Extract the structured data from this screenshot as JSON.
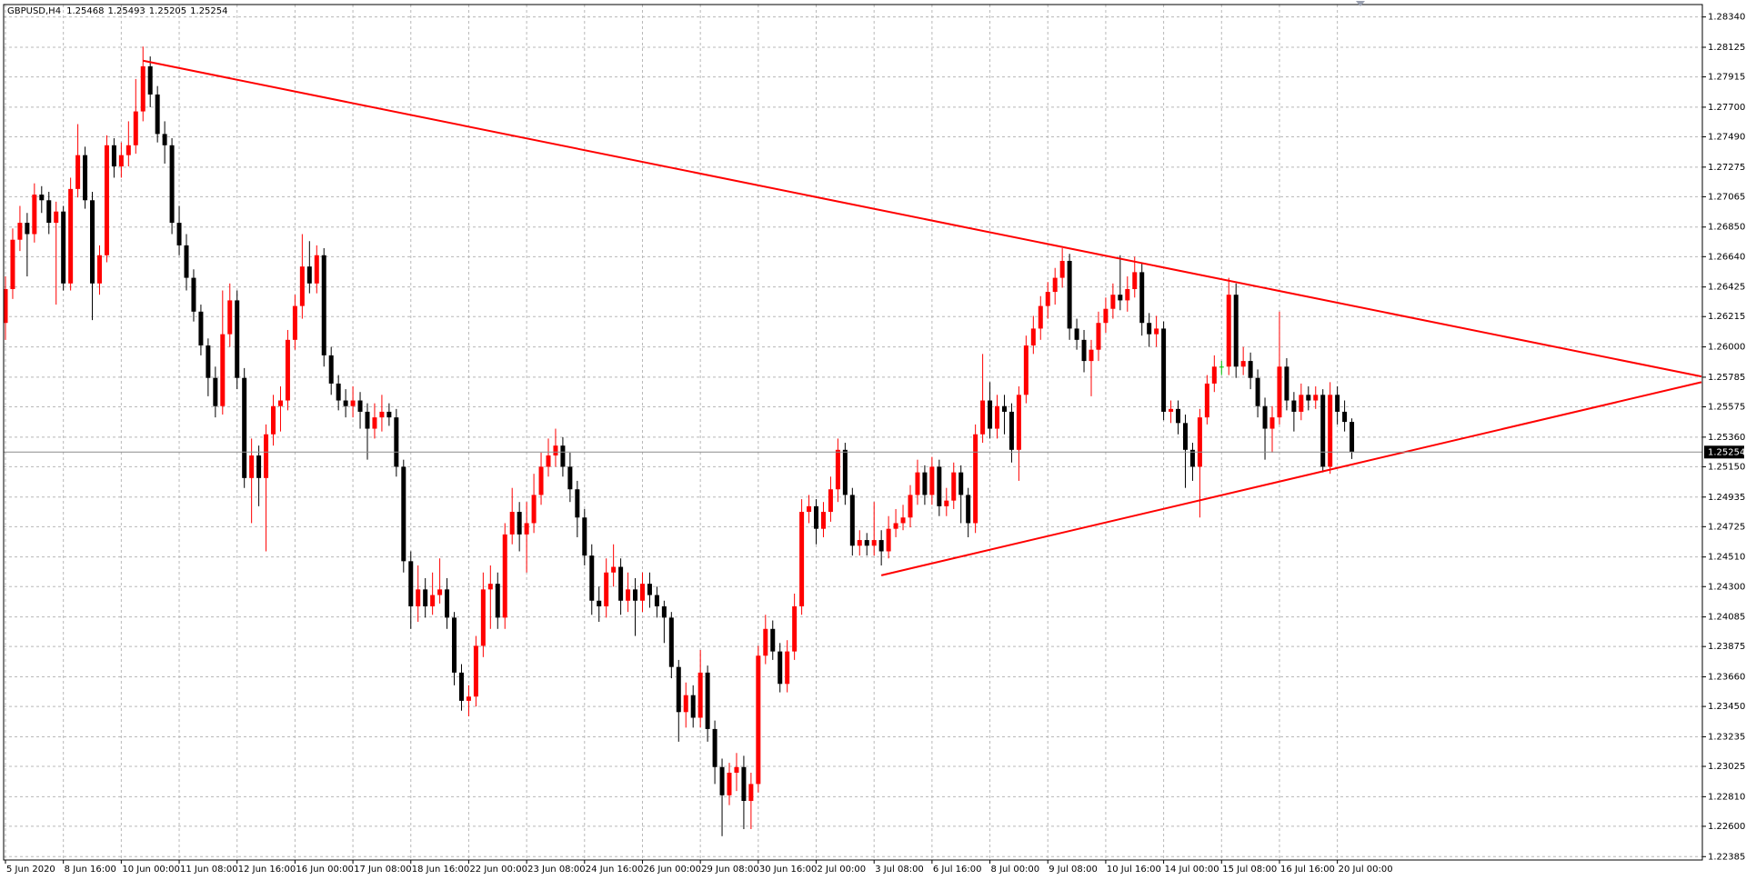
{
  "chart_data": {
    "type": "candlestick",
    "title": "GBPUSD,H4",
    "up_color": "#ff0000",
    "down_color": "#000000",
    "doji_color": "#00c000",
    "grid": true,
    "categories": [
      "5 Jun 2020",
      null,
      null,
      null,
      null,
      null,
      null,
      null,
      "8 Jun 16:00",
      null,
      null,
      null,
      null,
      null,
      null,
      null,
      "10 Jun 00:00",
      null,
      null,
      null,
      null,
      null,
      null,
      null,
      "11 Jun 08:00",
      null,
      null,
      null,
      null,
      null,
      null,
      null,
      "12 Jun 16:00",
      null,
      null,
      null,
      null,
      null,
      null,
      null,
      "16 Jun 00:00",
      null,
      null,
      null,
      null,
      null,
      null,
      null,
      "17 Jun 08:00",
      null,
      null,
      null,
      null,
      null,
      null,
      null,
      "18 Jun 16:00",
      null,
      null,
      null,
      null,
      null,
      null,
      null,
      "22 Jun 00:00",
      null,
      null,
      null,
      null,
      null,
      null,
      null,
      "23 Jun 08:00",
      null,
      null,
      null,
      null,
      null,
      null,
      null,
      "24 Jun 16:00",
      null,
      null,
      null,
      null,
      null,
      null,
      null,
      "26 Jun 00:00",
      null,
      null,
      null,
      null,
      null,
      null,
      null,
      "29 Jun 08:00",
      null,
      null,
      null,
      null,
      null,
      null,
      null,
      "30 Jun 16:00",
      null,
      null,
      null,
      null,
      null,
      null,
      null,
      "2 Jul 00:00",
      null,
      null,
      null,
      null,
      null,
      null,
      null,
      "3 Jul 08:00",
      null,
      null,
      null,
      null,
      null,
      null,
      null,
      "6 Jul 16:00",
      null,
      null,
      null,
      null,
      null,
      null,
      null,
      "8 Jul 00:00",
      null,
      null,
      null,
      null,
      null,
      null,
      null,
      "9 Jul 08:00",
      null,
      null,
      null,
      null,
      null,
      null,
      null,
      "10 Jul 16:00",
      null,
      null,
      null,
      null,
      null,
      null,
      null,
      "14 Jul 00:00",
      null,
      null,
      null,
      null,
      null,
      null,
      null,
      "15 Jul 08:00",
      null,
      null,
      null,
      null,
      null,
      null,
      null,
      "16 Jul 16:00",
      null,
      null,
      null,
      null,
      null,
      null,
      null,
      "20 Jul 00:00",
      null,
      null
    ],
    "open": [
      1.2617,
      1.2641,
      1.2676,
      1.2688,
      1.268,
      1.2708,
      1.2704,
      1.2688,
      1.2696,
      1.2645,
      1.2712,
      1.2736,
      1.2704,
      1.2645,
      1.2665,
      1.2743,
      1.2728,
      1.2736,
      1.2743,
      1.2767,
      1.2799,
      1.2779,
      1.2751,
      1.2743,
      1.2688,
      1.2672,
      1.2649,
      1.2625,
      1.2601,
      1.2578,
      1.2558,
      1.2609,
      1.2633,
      1.2578,
      1.2507,
      1.2523,
      1.2507,
      1.2538,
      1.2558,
      1.2562,
      1.2605,
      1.2629,
      1.2657,
      1.2645,
      1.2665,
      1.2594,
      1.2574,
      1.2562,
      1.2558,
      1.2562,
      1.2554,
      1.2542,
      1.255,
      1.2554,
      1.255,
      1.2515,
      1.2448,
      1.2416,
      1.2428,
      1.2416,
      1.2424,
      1.2428,
      1.2408,
      1.2369,
      1.2349,
      1.2352,
      1.2388,
      1.2428,
      1.2432,
      1.2408,
      1.2467,
      1.2483,
      1.2467,
      1.2475,
      1.2495,
      1.2515,
      1.2523,
      1.253,
      1.2515,
      1.2499,
      1.2479,
      1.2452,
      1.242,
      1.2416,
      1.244,
      1.2444,
      1.242,
      1.2428,
      1.242,
      1.2432,
      1.2424,
      1.2416,
      1.2408,
      1.2373,
      1.2341,
      1.2353,
      1.2337,
      1.2369,
      1.2329,
      1.2302,
      1.2282,
      1.2298,
      1.2302,
      1.2278,
      1.229,
      1.2381,
      1.24,
      1.2384,
      1.2361,
      1.2384,
      1.2416,
      1.2483,
      1.2487,
      1.2471,
      1.2483,
      1.2499,
      1.2527,
      1.2495,
      1.2459,
      1.2463,
      1.2459,
      1.2463,
      1.2455,
      1.2471,
      1.2475,
      1.2479,
      1.2495,
      1.2511,
      1.2495,
      1.2515,
      1.2487,
      1.2491,
      1.2511,
      1.2495,
      1.2475,
      1.2538,
      1.2562,
      1.2542,
      1.2558,
      1.2554,
      1.2527,
      1.2566,
      1.2601,
      1.2613,
      1.2629,
      1.2639,
      1.2649,
      1.2661,
      1.2613,
      1.2605,
      1.259,
      1.2598,
      1.2617,
      1.2627,
      1.2637,
      1.2633,
      1.2641,
      1.2653,
      1.2617,
      1.2609,
      1.2613,
      1.2554,
      1.2556,
      1.2546,
      1.2527,
      1.2515,
      1.255,
      1.2574,
      1.2586,
      1.2586,
      1.2637,
      1.2586,
      1.259,
      1.2578,
      1.2558,
      1.2542,
      1.255,
      1.2586,
      1.2562,
      1.2554,
      1.2566,
      1.2562,
      1.2566,
      1.2515,
      1.2566,
      1.2554,
      1.25468
    ],
    "high": [
      1.265,
      1.2684,
      1.27,
      1.2695,
      1.2716,
      1.2714,
      1.271,
      1.2703,
      1.27,
      1.272,
      1.2758,
      1.2742,
      1.271,
      1.2672,
      1.275,
      1.2748,
      1.2745,
      1.276,
      1.279,
      1.2813,
      1.2806,
      1.2785,
      1.276,
      1.2748,
      1.27,
      1.268,
      1.2655,
      1.263,
      1.2606,
      1.2586,
      1.264,
      1.2645,
      1.264,
      1.2585,
      1.2535,
      1.253,
      1.2545,
      1.2566,
      1.2572,
      1.2612,
      1.2637,
      1.268,
      1.2675,
      1.2672,
      1.267,
      1.26,
      1.258,
      1.257,
      1.2572,
      1.2568,
      1.256,
      1.256,
      1.2566,
      1.256,
      1.2556,
      1.252,
      1.2455,
      1.2445,
      1.2436,
      1.244,
      1.245,
      1.2436,
      1.2412,
      1.2375,
      1.236,
      1.2395,
      1.244,
      1.2445,
      1.244,
      1.2475,
      1.25,
      1.249,
      1.249,
      1.251,
      1.2525,
      1.2535,
      1.2542,
      1.2536,
      1.2525,
      1.2505,
      1.2485,
      1.246,
      1.243,
      1.245,
      1.246,
      1.245,
      1.244,
      1.2436,
      1.244,
      1.244,
      1.243,
      1.242,
      1.2412,
      1.2378,
      1.2362,
      1.236,
      1.2385,
      1.2374,
      1.2335,
      1.2308,
      1.2305,
      1.2312,
      1.231,
      1.2298,
      1.2388,
      1.241,
      1.2406,
      1.239,
      1.2392,
      1.2425,
      1.2492,
      1.2495,
      1.2492,
      1.249,
      1.2508,
      1.2535,
      1.2532,
      1.25,
      1.247,
      1.2468,
      1.249,
      1.247,
      1.248,
      1.2485,
      1.2488,
      1.2502,
      1.252,
      1.2516,
      1.2522,
      1.252,
      1.25,
      1.2518,
      1.2516,
      1.25,
      1.2545,
      1.2595,
      1.2575,
      1.2566,
      1.2566,
      1.256,
      1.2572,
      1.2608,
      1.2622,
      1.2636,
      1.2646,
      1.2656,
      1.267,
      1.2666,
      1.262,
      1.2612,
      1.2605,
      1.2625,
      1.2635,
      1.2645,
      1.2665,
      1.265,
      1.2664,
      1.266,
      1.2624,
      1.2622,
      1.2618,
      1.2562,
      1.2562,
      1.2552,
      1.2532,
      1.2556,
      1.258,
      1.2594,
      1.259,
      1.2649,
      1.2645,
      1.26,
      1.2596,
      1.2584,
      1.2564,
      1.2558,
      1.2625,
      1.2592,
      1.2568,
      1.2574,
      1.2572,
      1.2572,
      1.257,
      1.2575,
      1.2572,
      1.2562,
      1.25493
    ],
    "low": [
      1.2605,
      1.2634,
      1.2668,
      1.265,
      1.2674,
      1.2695,
      1.268,
      1.263,
      1.264,
      1.264,
      1.2706,
      1.2698,
      1.2619,
      1.2637,
      1.266,
      1.272,
      1.272,
      1.2728,
      1.2737,
      1.276,
      1.277,
      1.2745,
      1.273,
      1.268,
      1.2665,
      1.264,
      1.2618,
      1.2594,
      1.2565,
      1.255,
      1.2552,
      1.26,
      1.257,
      1.25,
      1.2475,
      1.2487,
      1.2455,
      1.253,
      1.254,
      1.2555,
      1.2598,
      1.262,
      1.2638,
      1.2638,
      1.2586,
      1.2566,
      1.2555,
      1.255,
      1.255,
      1.2542,
      1.252,
      1.2535,
      1.254,
      1.2544,
      1.2508,
      1.244,
      1.24,
      1.2405,
      1.2408,
      1.241,
      1.2418,
      1.24,
      1.236,
      1.2342,
      1.2338,
      1.2345,
      1.238,
      1.24,
      1.24,
      1.24,
      1.246,
      1.2455,
      1.244,
      1.2468,
      1.2488,
      1.2508,
      1.2515,
      1.2508,
      1.249,
      1.2465,
      1.2445,
      1.241,
      1.2405,
      1.2408,
      1.243,
      1.241,
      1.2412,
      1.2395,
      1.2412,
      1.2415,
      1.2408,
      1.239,
      1.2365,
      1.232,
      1.233,
      1.233,
      1.233,
      1.232,
      1.229,
      1.2253,
      1.2275,
      1.2285,
      1.2258,
      1.2258,
      1.2284,
      1.2375,
      1.2378,
      1.2355,
      1.2355,
      1.2378,
      1.241,
      1.2475,
      1.246,
      1.2465,
      1.2476,
      1.249,
      1.2488,
      1.2452,
      1.2452,
      1.2452,
      1.2452,
      1.2445,
      1.245,
      1.2465,
      1.247,
      1.2472,
      1.2488,
      1.2488,
      1.2488,
      1.248,
      1.248,
      1.2485,
      1.2475,
      1.2465,
      1.2468,
      1.2532,
      1.2535,
      1.2535,
      1.2538,
      1.2518,
      1.2505,
      1.256,
      1.2595,
      1.2605,
      1.262,
      1.263,
      1.2642,
      1.2605,
      1.2598,
      1.2582,
      1.2565,
      1.259,
      1.261,
      1.262,
      1.2626,
      1.2625,
      1.2635,
      1.2608,
      1.26,
      1.26,
      1.2548,
      1.2546,
      1.2538,
      1.25,
      1.2505,
      1.2479,
      1.2545,
      1.2568,
      1.258,
      1.258,
      1.2578,
      1.258,
      1.257,
      1.255,
      1.252,
      1.2525,
      1.2545,
      1.2555,
      1.254,
      1.2548,
      1.2555,
      1.2556,
      1.2511,
      1.251,
      1.2545,
      1.254,
      1.25205
    ],
    "close": [
      1.2641,
      1.2676,
      1.2688,
      1.268,
      1.2708,
      1.2704,
      1.2688,
      1.2696,
      1.2645,
      1.2712,
      1.2736,
      1.2704,
      1.2645,
      1.2665,
      1.2743,
      1.2728,
      1.2736,
      1.2743,
      1.2767,
      1.2799,
      1.2779,
      1.2751,
      1.2743,
      1.2688,
      1.2672,
      1.2649,
      1.2625,
      1.2601,
      1.2578,
      1.2558,
      1.2609,
      1.2633,
      1.2578,
      1.2507,
      1.2523,
      1.2507,
      1.2538,
      1.2558,
      1.2562,
      1.2605,
      1.2629,
      1.2657,
      1.2645,
      1.2665,
      1.2594,
      1.2574,
      1.2562,
      1.2558,
      1.2562,
      1.2554,
      1.2542,
      1.255,
      1.2554,
      1.255,
      1.2515,
      1.2448,
      1.2416,
      1.2428,
      1.2416,
      1.2424,
      1.2428,
      1.2408,
      1.2369,
      1.2349,
      1.2352,
      1.2388,
      1.2428,
      1.2432,
      1.2408,
      1.2467,
      1.2483,
      1.2467,
      1.2475,
      1.2495,
      1.2515,
      1.2523,
      1.253,
      1.2515,
      1.2499,
      1.2479,
      1.2452,
      1.242,
      1.2416,
      1.244,
      1.2444,
      1.242,
      1.2428,
      1.242,
      1.2432,
      1.2424,
      1.2416,
      1.2408,
      1.2373,
      1.2341,
      1.2353,
      1.2337,
      1.2369,
      1.2329,
      1.2302,
      1.2282,
      1.2298,
      1.2302,
      1.2278,
      1.229,
      1.2381,
      1.24,
      1.2384,
      1.2361,
      1.2384,
      1.2416,
      1.2483,
      1.2487,
      1.2471,
      1.2483,
      1.2499,
      1.2527,
      1.2495,
      1.2459,
      1.2463,
      1.2459,
      1.2463,
      1.2455,
      1.2471,
      1.2475,
      1.2479,
      1.2495,
      1.2511,
      1.2495,
      1.2515,
      1.2487,
      1.2491,
      1.2511,
      1.2495,
      1.2475,
      1.2538,
      1.2562,
      1.2542,
      1.2558,
      1.2554,
      1.2527,
      1.2566,
      1.2601,
      1.2613,
      1.2629,
      1.2639,
      1.2649,
      1.2661,
      1.2613,
      1.2605,
      1.259,
      1.2598,
      1.2617,
      1.2627,
      1.2637,
      1.2633,
      1.2641,
      1.2653,
      1.2617,
      1.2609,
      1.2613,
      1.2554,
      1.2556,
      1.2546,
      1.2527,
      1.2515,
      1.255,
      1.2574,
      1.2586,
      1.2586,
      1.2637,
      1.2586,
      1.259,
      1.2578,
      1.2558,
      1.2542,
      1.255,
      1.2586,
      1.2562,
      1.2554,
      1.2566,
      1.2562,
      1.2566,
      1.2515,
      1.2566,
      1.2554,
      1.25468,
      1.25254
    ],
    "ylim": [
      1.22361,
      1.28428
    ],
    "yticks": [
      {
        "value": 1.2834,
        "label": "1.28340"
      },
      {
        "value": 1.28125,
        "label": "1.28125"
      },
      {
        "value": 1.27915,
        "label": "1.27915"
      },
      {
        "value": 1.277,
        "label": "1.27700"
      },
      {
        "value": 1.2749,
        "label": "1.27490"
      },
      {
        "value": 1.27275,
        "label": "1.27275"
      },
      {
        "value": 1.27065,
        "label": "1.27065"
      },
      {
        "value": 1.2685,
        "label": "1.26850"
      },
      {
        "value": 1.2664,
        "label": "1.26640"
      },
      {
        "value": 1.26425,
        "label": "1.26425"
      },
      {
        "value": 1.26215,
        "label": "1.26215"
      },
      {
        "value": 1.26,
        "label": "1.26000"
      },
      {
        "value": 1.25785,
        "label": "1.25785"
      },
      {
        "value": 1.25575,
        "label": "1.25575"
      },
      {
        "value": 1.2536,
        "label": "1.25360"
      },
      {
        "value": 1.2515,
        "label": "1.25150"
      },
      {
        "value": 1.24935,
        "label": "1.24935"
      },
      {
        "value": 1.24725,
        "label": "1.24725"
      },
      {
        "value": 1.2451,
        "label": "1.24510"
      },
      {
        "value": 1.243,
        "label": "1.24300"
      },
      {
        "value": 1.24085,
        "label": "1.24085"
      },
      {
        "value": 1.23875,
        "label": "1.23875"
      },
      {
        "value": 1.2366,
        "label": "1.23660"
      },
      {
        "value": 1.2345,
        "label": "1.23450"
      },
      {
        "value": 1.23235,
        "label": "1.23235"
      },
      {
        "value": 1.23025,
        "label": "1.23025"
      },
      {
        "value": 1.2281,
        "label": "1.22810"
      },
      {
        "value": 1.226,
        "label": "1.22600"
      },
      {
        "value": 1.22385,
        "label": "1.22385"
      }
    ],
    "trendlines": [
      {
        "color": "#ff0000",
        "x": [
          19,
          234.3
        ],
        "y": [
          1.2803,
          1.2579
        ]
      },
      {
        "color": "#ff0000",
        "x": [
          121,
          234.3
        ],
        "y": [
          1.2438,
          1.2575
        ]
      }
    ]
  }
}
